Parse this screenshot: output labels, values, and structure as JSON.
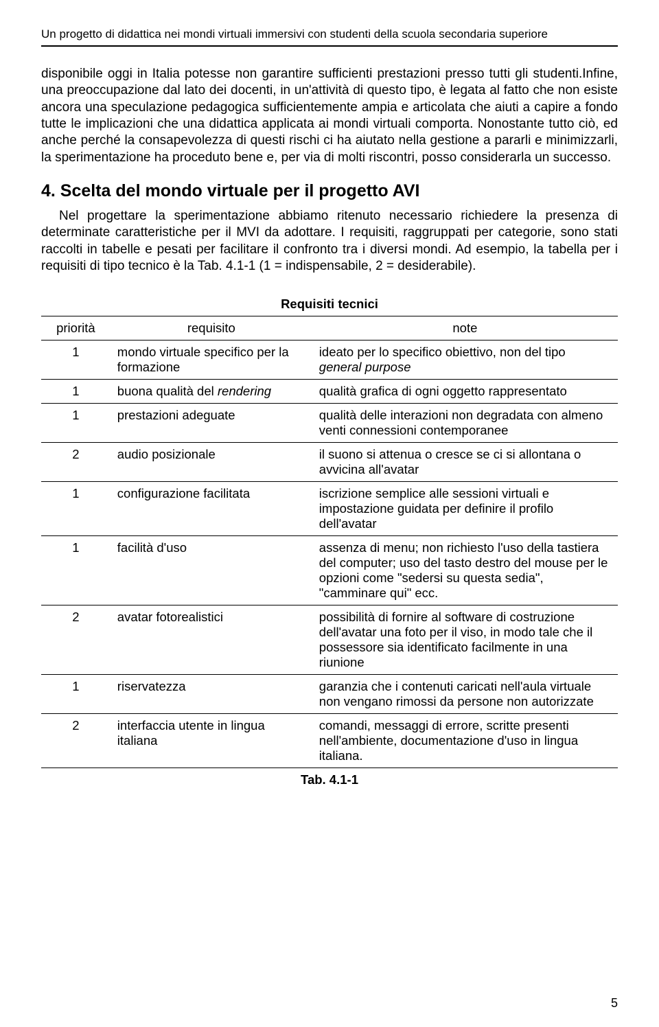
{
  "header": "Un progetto di didattica nei mondi virtuali immersivi con studenti della scuola secondaria superiore",
  "para1": "disponibile oggi in Italia potesse non garantire sufficienti prestazioni presso tutti gli studenti.Infine, una preoccupazione dal lato dei docenti, in un'attività di questo tipo, è legata al fatto che non esiste ancora una speculazione pedagogica sufficientemente ampia e articolata che aiuti a capire a fondo tutte le implicazioni che una didattica applicata ai mondi virtuali comporta. Nonostante tutto ciò, ed anche perché la consapevolezza di questi rischi ci ha aiutato nella gestione a pararli e minimizzarli, la sperimentazione ha proceduto bene e, per via di molti riscontri, posso considerarla un successo.",
  "section_title": "4. Scelta del mondo virtuale per il progetto AVI",
  "para2": "Nel progettare la sperimentazione abbiamo ritenuto necessario richiedere la presenza di determinate caratteristiche per il MVI da adottare. I requisiti, raggruppati per categorie, sono stati raccolti in tabelle e pesati per facilitare il confronto tra i diversi mondi. Ad esempio, la tabella per i requisiti di tipo tecnico è la Tab. 4.1-1 (1 = indispensabile, 2 = desiderabile).",
  "table": {
    "title": "Requisiti tecnici",
    "columns": [
      "priorità",
      "requisito",
      "note"
    ],
    "rows": [
      {
        "p": "1",
        "r": "mondo virtuale specifico per la formazione",
        "n_pre": "ideato per lo specifico obiettivo, non del tipo ",
        "n_em": "general purpose",
        "n_post": ""
      },
      {
        "p": "1",
        "r_pre": "buona qualità del ",
        "r_em": "rendering",
        "r_post": "",
        "n": "qualità grafica di ogni oggetto rappresentato"
      },
      {
        "p": "1",
        "r": "prestazioni adeguate",
        "n": "qualità delle interazioni non degradata con almeno venti connessioni contemporanee"
      },
      {
        "p": "2",
        "r": "audio posizionale",
        "n": "il suono si attenua o cresce se ci si allontana o avvicina all'avatar"
      },
      {
        "p": "1",
        "r": "configurazione facilitata",
        "n": "iscrizione semplice alle sessioni virtuali e impostazione guidata per definire il profilo dell'avatar"
      },
      {
        "p": "1",
        "r": "facilità d'uso",
        "n": "assenza di menu; non richiesto l'uso della tastiera del computer; uso del tasto destro del mouse per le opzioni come \"sedersi su questa sedia\", \"camminare qui\" ecc."
      },
      {
        "p": "2",
        "r": "avatar fotorealistici",
        "n": "possibilità di fornire  al software  di costruzione dell'avatar una foto per il viso, in modo tale che il possessore sia identificato facilmente in una riunione"
      },
      {
        "p": "1",
        "r": "riservatezza",
        "n": "garanzia che i contenuti caricati nell'aula virtuale non vengano rimossi da persone non autorizzate"
      },
      {
        "p": "2",
        "r": "interfaccia utente in lingua italiana",
        "n": "comandi, messaggi di errore, scritte presenti nell'ambiente, documentazione d'uso in lingua italiana."
      }
    ]
  },
  "caption": "Tab. 4.1-1",
  "page_number": "5"
}
